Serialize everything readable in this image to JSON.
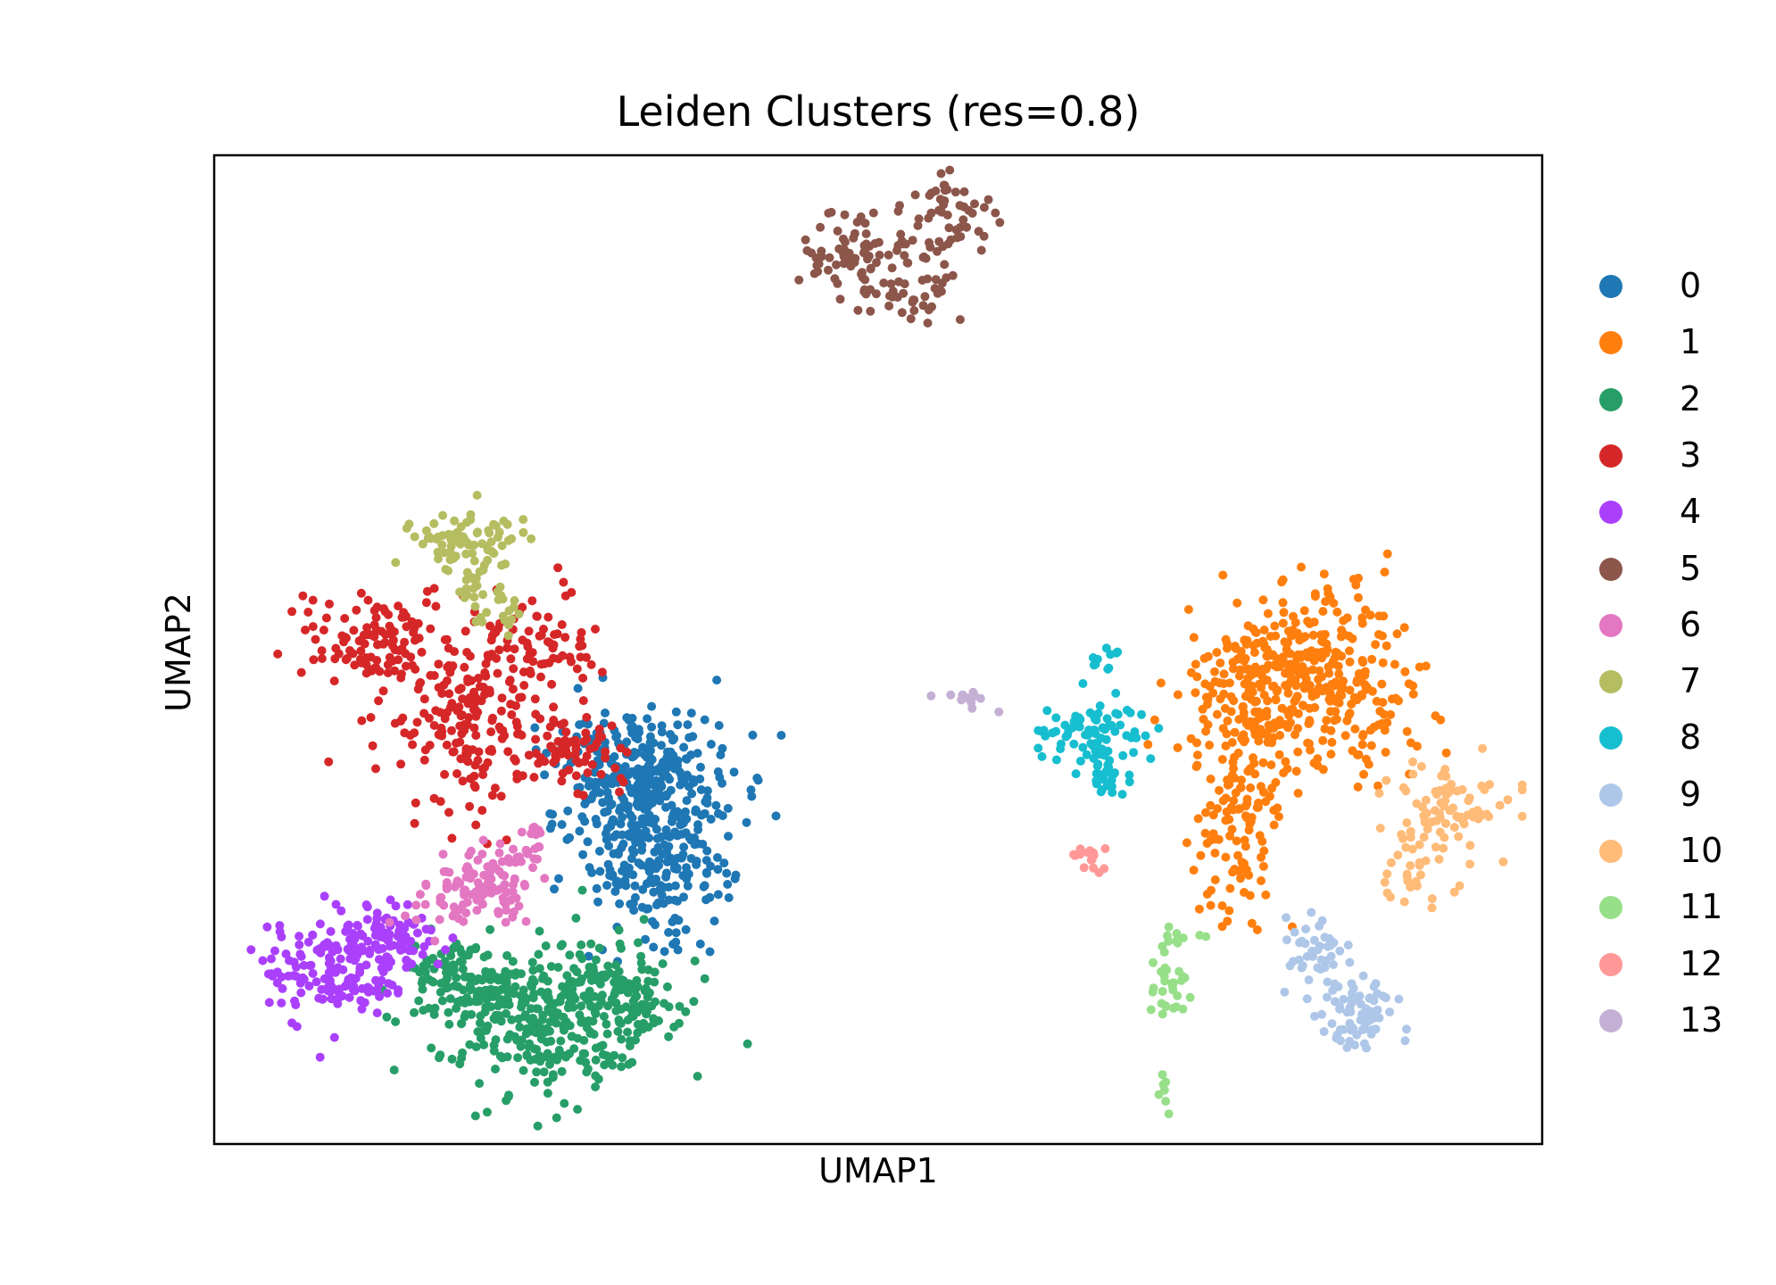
{
  "chart_data": {
    "type": "scatter",
    "title": "Leiden Clusters (res=0.8)",
    "xlabel": "UMAP1",
    "ylabel": "UMAP2",
    "ticks": "none",
    "grid": false,
    "legend_position": "right, outside plot",
    "marker_size": "small",
    "series": [
      {
        "name": "0",
        "color": "#1f77b4",
        "n": 520,
        "shape": [
          [
            0.33,
            0.34,
            0.055,
            0.095,
            1.0
          ],
          [
            0.34,
            0.28,
            0.05,
            0.07,
            0.5
          ],
          [
            0.31,
            0.38,
            0.04,
            0.05,
            0.4
          ]
        ]
      },
      {
        "name": "1",
        "color": "#ff7f0e",
        "n": 560,
        "shape": [
          [
            0.83,
            0.49,
            0.055,
            0.065,
            1.0
          ],
          [
            0.78,
            0.45,
            0.04,
            0.06,
            0.6
          ],
          [
            0.77,
            0.33,
            0.03,
            0.08,
            0.6
          ],
          [
            0.86,
            0.42,
            0.04,
            0.05,
            0.4
          ]
        ]
      },
      {
        "name": "2",
        "color": "#279e68",
        "n": 520,
        "shape": [
          [
            0.245,
            0.13,
            0.075,
            0.065,
            1.0
          ],
          [
            0.19,
            0.16,
            0.04,
            0.04,
            0.3
          ],
          [
            0.31,
            0.15,
            0.04,
            0.04,
            0.3
          ]
        ]
      },
      {
        "name": "3",
        "color": "#d62728",
        "n": 430,
        "shape": [
          [
            0.19,
            0.43,
            0.05,
            0.075,
            1.0
          ],
          [
            0.12,
            0.51,
            0.045,
            0.045,
            0.5
          ],
          [
            0.24,
            0.5,
            0.04,
            0.05,
            0.5
          ],
          [
            0.27,
            0.4,
            0.035,
            0.035,
            0.4
          ]
        ]
      },
      {
        "name": "4",
        "color": "#aa40fc",
        "n": 230,
        "shape": [
          [
            0.095,
            0.18,
            0.045,
            0.045,
            1.0
          ],
          [
            0.13,
            0.21,
            0.03,
            0.03,
            0.4
          ]
        ]
      },
      {
        "name": "5",
        "color": "#8c564b",
        "n": 170,
        "shape": [
          [
            0.48,
            0.9,
            0.03,
            0.035,
            1.0
          ],
          [
            0.55,
            0.93,
            0.028,
            0.035,
            1.0
          ],
          [
            0.53,
            0.86,
            0.03,
            0.025,
            0.6
          ]
        ]
      },
      {
        "name": "6",
        "color": "#e377c2",
        "n": 130,
        "shape": [
          [
            0.195,
            0.26,
            0.035,
            0.035,
            1.0
          ],
          [
            0.23,
            0.29,
            0.02,
            0.03,
            0.4
          ]
        ]
      },
      {
        "name": "7",
        "color": "#b5bd61",
        "n": 110,
        "shape": [
          [
            0.19,
            0.61,
            0.035,
            0.025,
            1.0
          ],
          [
            0.2,
            0.56,
            0.02,
            0.03,
            0.4
          ],
          [
            0.225,
            0.53,
            0.01,
            0.02,
            0.15
          ]
        ]
      },
      {
        "name": "8",
        "color": "#17becf",
        "n": 110,
        "shape": [
          [
            0.66,
            0.42,
            0.035,
            0.03,
            1.0
          ],
          [
            0.67,
            0.37,
            0.02,
            0.02,
            0.3
          ],
          [
            0.67,
            0.49,
            0.01,
            0.01,
            0.15
          ]
        ]
      },
      {
        "name": "9",
        "color": "#aec7e8",
        "n": 110,
        "shape": [
          [
            0.86,
            0.13,
            0.022,
            0.035,
            1.0
          ],
          [
            0.83,
            0.19,
            0.02,
            0.03,
            0.6
          ]
        ]
      },
      {
        "name": "10",
        "color": "#ffbb78",
        "n": 110,
        "shape": [
          [
            0.93,
            0.34,
            0.04,
            0.045,
            1.0
          ],
          [
            0.9,
            0.27,
            0.025,
            0.03,
            0.3
          ]
        ]
      },
      {
        "name": "11",
        "color": "#98df8a",
        "n": 45,
        "shape": [
          [
            0.72,
            0.17,
            0.012,
            0.035,
            1.0
          ],
          [
            0.74,
            0.21,
            0.02,
            0.01,
            0.3
          ],
          [
            0.715,
            0.05,
            0.005,
            0.02,
            0.3
          ]
        ]
      },
      {
        "name": "12",
        "color": "#ff9896",
        "n": 16,
        "shape": [
          [
            0.66,
            0.29,
            0.012,
            0.012,
            1.0
          ]
        ]
      },
      {
        "name": "13",
        "color": "#c5b0d5",
        "n": 14,
        "shape": [
          [
            0.56,
            0.45,
            0.02,
            0.01,
            1.0
          ]
        ]
      }
    ]
  }
}
